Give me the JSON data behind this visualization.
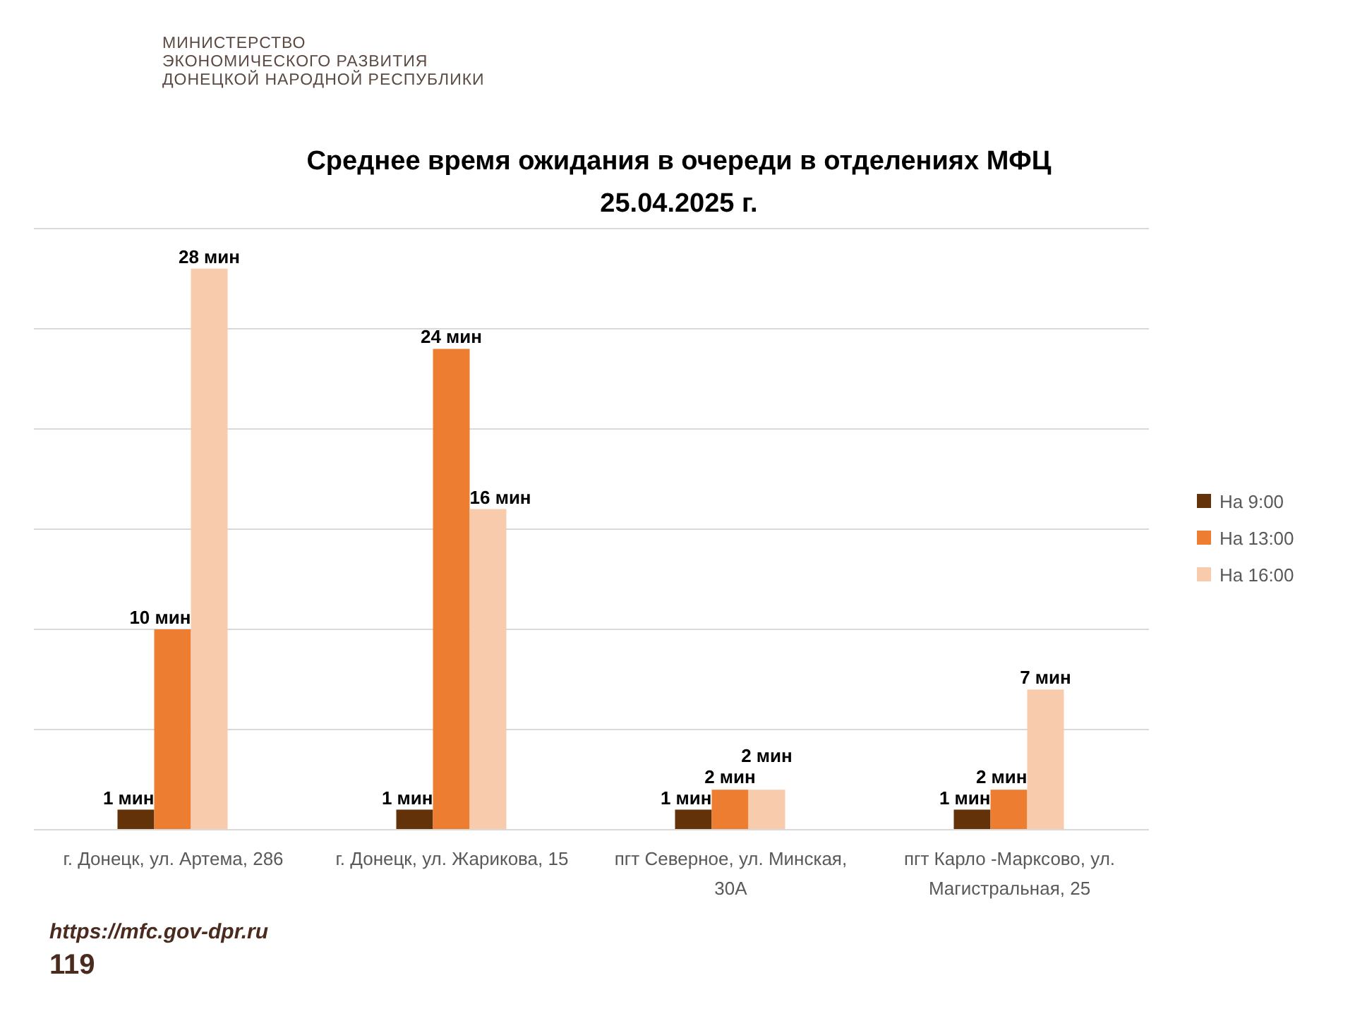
{
  "chart_data": {
    "type": "bar",
    "title": "Среднее время ожидания в очереди в отделениях МФЦ",
    "subtitle": "25.04.2025 г.",
    "categories": [
      "г. Донецк, ул. Артема, 286",
      "г. Донецк, ул. Жарикова, 15",
      "пгт Северное, ул. Минская, 30А",
      "пгт Карло -Марксово, ул. Магистральная, 25"
    ],
    "series": [
      {
        "name": "На 9:00",
        "color": "#633208",
        "values": [
          1,
          1,
          1,
          1
        ],
        "value_labels": [
          "1 мин",
          "1 мин",
          "1 мин",
          "1 мин"
        ]
      },
      {
        "name": "На 13:00",
        "color": "#ed7d31",
        "values": [
          10,
          24,
          2,
          2
        ],
        "value_labels": [
          "10 мин",
          "24 мин",
          "2 мин",
          "2 мин"
        ]
      },
      {
        "name": "На 16:00",
        "color": "#f8cbad",
        "values": [
          28,
          16,
          2,
          7
        ],
        "value_labels": [
          "28 мин",
          "16 мин",
          "2 мин",
          "7 мин"
        ]
      }
    ],
    "ylim": [
      0,
      30
    ],
    "yticks": [
      {
        "value": 0,
        "label": null
      },
      {
        "value": 5,
        "label": null
      },
      {
        "value": 10,
        "label": null
      },
      {
        "value": 15,
        "label": null
      },
      {
        "value": 20,
        "label": null
      },
      {
        "value": 25,
        "label": null
      },
      {
        "value": 30,
        "label": null
      }
    ],
    "grid": "y",
    "tick_labels": "x",
    "legend": "right",
    "annotations": [
      "МИНИСТЕРСТВО\nЭКОНОМИЧЕСКОГО РАЗВИТИЯ\nДОНЕЦКОЙ НАРОДНОЙ РЕСПУБЛИКИ",
      "https://mfc.gov-dpr.ru",
      "119"
    ]
  }
}
